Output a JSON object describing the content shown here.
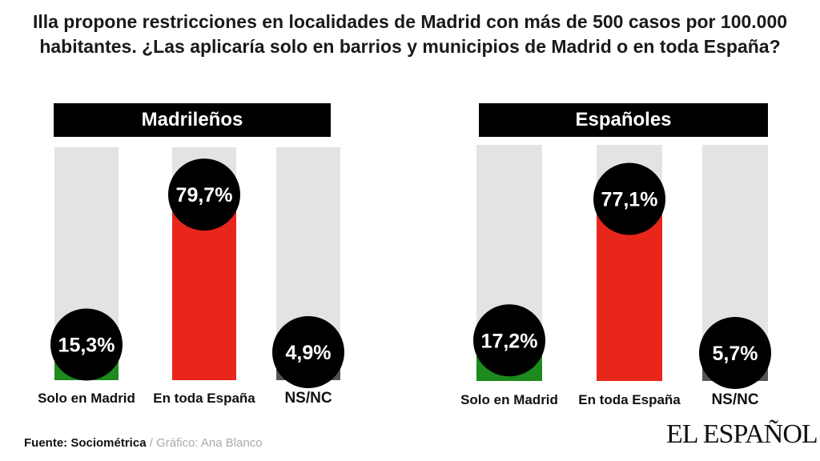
{
  "title": "Illa propone restricciones en localidades de Madrid con más de 500 casos por 100.000 habitantes. ¿Las aplicaría solo en barrios y municipios de Madrid o en toda España?",
  "footer": {
    "source": "Fuente: Sociométrica",
    "separator": " / ",
    "credit": "Gráfico: Ana Blanco"
  },
  "logo": "EL ESPAÑOL",
  "chart_data": [
    {
      "type": "bar",
      "title": "Madrileños",
      "categories": [
        "Solo en Madrid",
        "En toda España",
        "NS/NC"
      ],
      "values": [
        15.3,
        79.7,
        4.9
      ],
      "labels": [
        "15,3%",
        "79,7%",
        "4,9%"
      ],
      "colors": [
        "#1c8a1c",
        "#e8261c",
        "#555555"
      ],
      "ylim": [
        0,
        100
      ],
      "grid": false
    },
    {
      "type": "bar",
      "title": "Españoles",
      "categories": [
        "Solo en Madrid",
        "En toda España",
        "NS/NC"
      ],
      "values": [
        17.2,
        77.1,
        5.7
      ],
      "labels": [
        "17,2%",
        "77,1%",
        "5,7%"
      ],
      "colors": [
        "#1c8a1c",
        "#e8261c",
        "#555555"
      ],
      "ylim": [
        0,
        100
      ],
      "grid": false
    }
  ]
}
